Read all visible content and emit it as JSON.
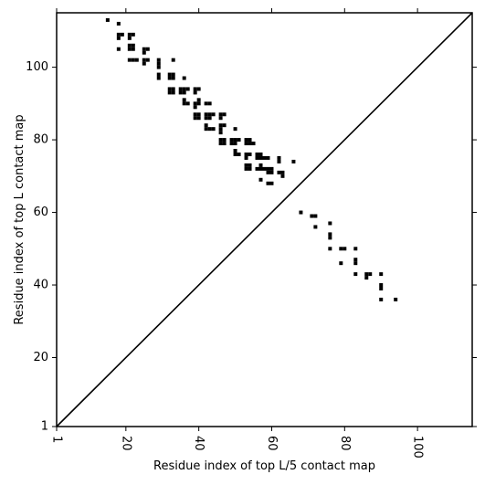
{
  "chart_data": {
    "type": "scatter",
    "title": "",
    "xlabel": "Residue index of top L/5 contact map",
    "ylabel": "Residue index of top L contact map",
    "xlim": [
      1,
      115
    ],
    "ylim": [
      1,
      115
    ],
    "x_ticks": [
      1,
      20,
      40,
      60,
      80,
      100
    ],
    "y_ticks": [
      1,
      20,
      40,
      60,
      80,
      100
    ],
    "x_tick_rotation": 90,
    "grid": false,
    "diagonal_line": true,
    "series": [
      {
        "name": "",
        "color": "#000000",
        "points": [
          [
            15,
            113
          ],
          [
            18,
            112
          ],
          [
            18,
            109
          ],
          [
            19,
            109
          ],
          [
            18,
            108
          ],
          [
            21,
            109
          ],
          [
            22,
            109
          ],
          [
            21,
            108
          ],
          [
            18,
            105
          ],
          [
            21,
            106
          ],
          [
            22,
            106
          ],
          [
            21,
            105
          ],
          [
            22,
            105
          ],
          [
            25,
            105
          ],
          [
            26,
            105
          ],
          [
            25,
            104
          ],
          [
            21,
            102
          ],
          [
            22,
            102
          ],
          [
            23,
            102
          ],
          [
            25,
            102
          ],
          [
            26,
            102
          ],
          [
            25,
            101
          ],
          [
            29,
            102
          ],
          [
            29,
            101
          ],
          [
            29,
            100
          ],
          [
            29,
            98
          ],
          [
            29,
            97
          ],
          [
            33,
            102
          ],
          [
            32,
            98
          ],
          [
            33,
            98
          ],
          [
            32,
            97
          ],
          [
            33,
            97
          ],
          [
            32,
            94
          ],
          [
            33,
            94
          ],
          [
            32,
            93
          ],
          [
            33,
            93
          ],
          [
            35,
            94
          ],
          [
            36,
            94
          ],
          [
            35,
            93
          ],
          [
            36,
            93
          ],
          [
            37,
            94
          ],
          [
            36,
            97
          ],
          [
            36,
            91
          ],
          [
            36,
            90
          ],
          [
            37,
            90
          ],
          [
            39,
            94
          ],
          [
            40,
            94
          ],
          [
            39,
            93
          ],
          [
            40,
            91
          ],
          [
            39,
            90
          ],
          [
            40,
            90
          ],
          [
            39,
            89
          ],
          [
            39,
            87
          ],
          [
            40,
            87
          ],
          [
            39,
            86
          ],
          [
            40,
            86
          ],
          [
            42,
            90
          ],
          [
            43,
            90
          ],
          [
            42,
            87
          ],
          [
            43,
            87
          ],
          [
            44,
            87
          ],
          [
            42,
            86
          ],
          [
            43,
            86
          ],
          [
            42,
            84
          ],
          [
            42,
            83
          ],
          [
            43,
            83
          ],
          [
            44,
            83
          ],
          [
            46,
            87
          ],
          [
            46,
            86
          ],
          [
            47,
            87
          ],
          [
            46,
            84
          ],
          [
            47,
            84
          ],
          [
            46,
            83
          ],
          [
            46,
            82
          ],
          [
            46,
            80
          ],
          [
            47,
            80
          ],
          [
            46,
            79
          ],
          [
            47,
            79
          ],
          [
            50,
            83
          ],
          [
            49,
            80
          ],
          [
            50,
            80
          ],
          [
            51,
            80
          ],
          [
            49,
            79
          ],
          [
            50,
            79
          ],
          [
            50,
            77
          ],
          [
            50,
            76
          ],
          [
            51,
            76
          ],
          [
            53,
            80
          ],
          [
            54,
            80
          ],
          [
            53,
            79
          ],
          [
            54,
            79
          ],
          [
            55,
            79
          ],
          [
            53,
            76
          ],
          [
            54,
            76
          ],
          [
            53,
            75
          ],
          [
            53,
            73
          ],
          [
            54,
            73
          ],
          [
            53,
            72
          ],
          [
            54,
            72
          ],
          [
            56,
            76
          ],
          [
            57,
            76
          ],
          [
            56,
            75
          ],
          [
            57,
            75
          ],
          [
            58,
            75
          ],
          [
            59,
            75
          ],
          [
            56,
            72
          ],
          [
            57,
            72
          ],
          [
            57,
            73
          ],
          [
            58,
            72
          ],
          [
            59,
            72
          ],
          [
            60,
            72
          ],
          [
            59,
            71
          ],
          [
            60,
            71
          ],
          [
            62,
            75
          ],
          [
            62,
            74
          ],
          [
            62,
            71
          ],
          [
            63,
            71
          ],
          [
            63,
            70
          ],
          [
            57,
            69
          ],
          [
            59,
            68
          ],
          [
            60,
            68
          ],
          [
            66,
            74
          ],
          [
            68,
            60
          ],
          [
            71,
            59
          ],
          [
            72,
            59
          ],
          [
            72,
            56
          ],
          [
            76,
            57
          ],
          [
            76,
            54
          ],
          [
            76,
            53
          ],
          [
            76,
            50
          ],
          [
            79,
            50
          ],
          [
            80,
            50
          ],
          [
            79,
            46
          ],
          [
            83,
            50
          ],
          [
            83,
            47
          ],
          [
            83,
            46
          ],
          [
            83,
            43
          ],
          [
            86,
            43
          ],
          [
            87,
            43
          ],
          [
            86,
            42
          ],
          [
            90,
            43
          ],
          [
            90,
            40
          ],
          [
            90,
            39
          ],
          [
            90,
            36
          ],
          [
            94,
            36
          ]
        ]
      }
    ]
  }
}
